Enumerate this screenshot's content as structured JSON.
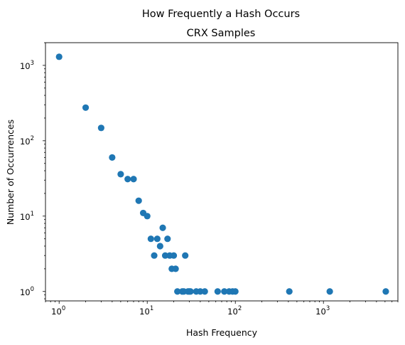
{
  "chart_data": {
    "type": "scatter",
    "suptitle": "How Frequently a Hash Occurs",
    "title": "CRX Samples",
    "xlabel": "Hash Frequency",
    "ylabel": "Number of Occurrences",
    "xscale": "log",
    "yscale": "log",
    "xlim": [
      0.7,
      7000
    ],
    "ylim": [
      0.75,
      2000
    ],
    "grid": false,
    "marker_color": "#1f77b4",
    "x_ticks": [
      {
        "value": 1,
        "base": "10",
        "exp": "0"
      },
      {
        "value": 10,
        "base": "10",
        "exp": "1"
      },
      {
        "value": 100,
        "base": "10",
        "exp": "2"
      },
      {
        "value": 1000,
        "base": "10",
        "exp": "3"
      }
    ],
    "y_ticks": [
      {
        "value": 1,
        "base": "10",
        "exp": "0"
      },
      {
        "value": 10,
        "base": "10",
        "exp": "1"
      },
      {
        "value": 100,
        "base": "10",
        "exp": "2"
      },
      {
        "value": 1000,
        "base": "10",
        "exp": "3"
      }
    ],
    "points": [
      {
        "x": 1,
        "y": 1300
      },
      {
        "x": 2,
        "y": 275
      },
      {
        "x": 3,
        "y": 148
      },
      {
        "x": 4,
        "y": 60
      },
      {
        "x": 5,
        "y": 36
      },
      {
        "x": 6,
        "y": 31
      },
      {
        "x": 7,
        "y": 31
      },
      {
        "x": 8,
        "y": 16
      },
      {
        "x": 9,
        "y": 11
      },
      {
        "x": 10,
        "y": 10
      },
      {
        "x": 11,
        "y": 5
      },
      {
        "x": 12,
        "y": 3
      },
      {
        "x": 13,
        "y": 5
      },
      {
        "x": 14,
        "y": 4
      },
      {
        "x": 15,
        "y": 7
      },
      {
        "x": 16,
        "y": 3
      },
      {
        "x": 17,
        "y": 5
      },
      {
        "x": 18,
        "y": 3
      },
      {
        "x": 19,
        "y": 2
      },
      {
        "x": 20,
        "y": 3
      },
      {
        "x": 21,
        "y": 2
      },
      {
        "x": 22,
        "y": 1
      },
      {
        "x": 25,
        "y": 1
      },
      {
        "x": 26,
        "y": 1
      },
      {
        "x": 27,
        "y": 3
      },
      {
        "x": 29,
        "y": 1
      },
      {
        "x": 30,
        "y": 1
      },
      {
        "x": 31,
        "y": 1
      },
      {
        "x": 36,
        "y": 1
      },
      {
        "x": 40,
        "y": 1
      },
      {
        "x": 45,
        "y": 1
      },
      {
        "x": 63,
        "y": 1
      },
      {
        "x": 75,
        "y": 1
      },
      {
        "x": 85,
        "y": 1
      },
      {
        "x": 93,
        "y": 1
      },
      {
        "x": 100,
        "y": 1
      },
      {
        "x": 410,
        "y": 1
      },
      {
        "x": 1180,
        "y": 1
      },
      {
        "x": 5100,
        "y": 1
      }
    ]
  }
}
